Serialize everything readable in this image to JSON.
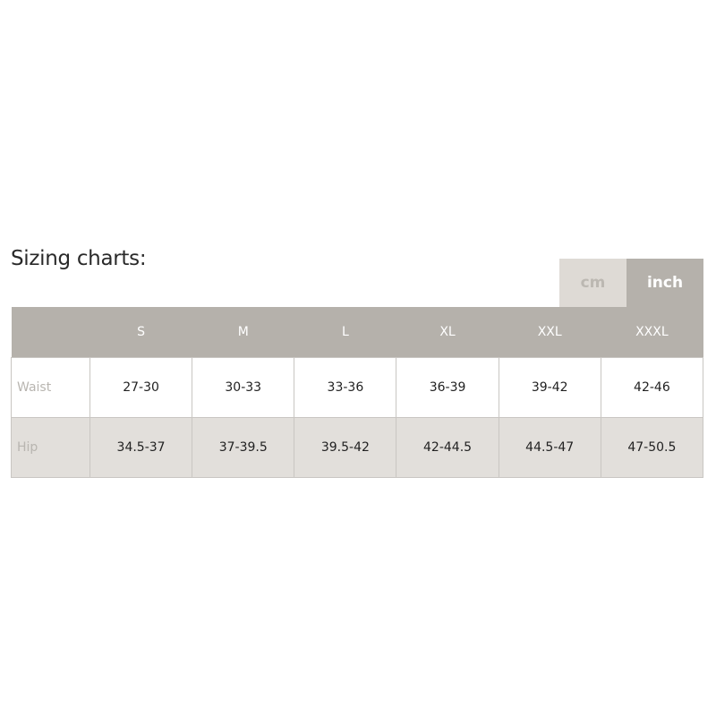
{
  "title": "Sizing charts:",
  "units": {
    "options": [
      "cm",
      "inch"
    ],
    "selected": "inch"
  },
  "table": {
    "headers": [
      "S",
      "M",
      "L",
      "XL",
      "XXL",
      "XXXL"
    ],
    "rows": [
      {
        "label": "Waist",
        "values": [
          "27-30",
          "30-33",
          "33-36",
          "36-39",
          "39-42",
          "42-46"
        ]
      },
      {
        "label": "Hip",
        "values": [
          "34.5-37",
          "37-39.5",
          "39.5-42",
          "42-44.5",
          "44.5-47",
          "47-50.5"
        ]
      }
    ]
  },
  "colors": {
    "header": "#b5b1ab",
    "inactive_tab": "#dedad5",
    "hip_row": "#e2dfdb"
  }
}
